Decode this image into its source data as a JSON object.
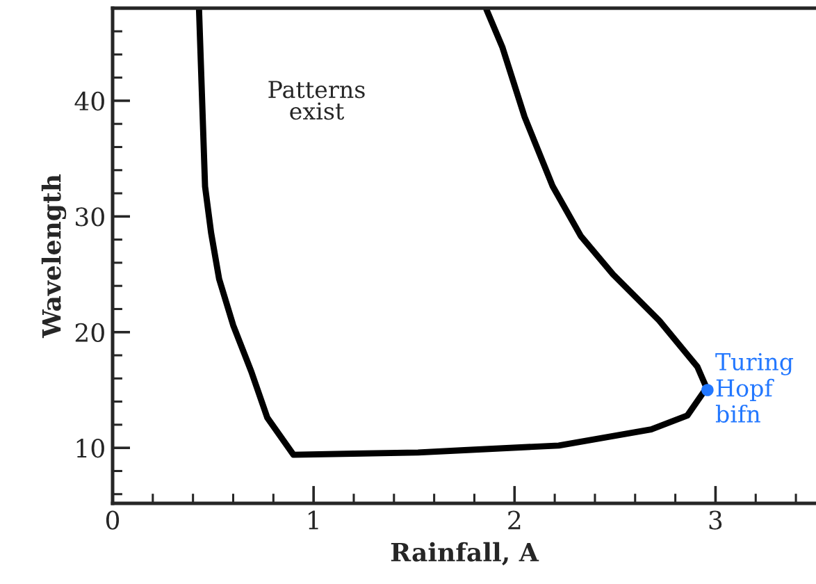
{
  "chart_data": {
    "type": "line",
    "xlabel": "Rainfall, A",
    "ylabel": "Wavelength",
    "xlim": [
      0,
      3.5
    ],
    "ylim": [
      5.2,
      48
    ],
    "xticks": [
      0,
      1,
      2,
      3
    ],
    "yticks": [
      10,
      20,
      30,
      40
    ],
    "annotations": [
      "Patterns\nexist",
      {
        "text": "Turing\nHopf\nbifn",
        "x": 2.96,
        "y": 15.0
      }
    ],
    "series": [
      {
        "color": "#000000",
        "marker": "none",
        "x": [
          0.43,
          0.46,
          0.49,
          0.53,
          0.6,
          0.69,
          0.77,
          0.9,
          1.2,
          1.52,
          1.75,
          2.22,
          2.68,
          2.86,
          2.94,
          2.96,
          2.91,
          2.72,
          2.49,
          2.33,
          2.19,
          2.05,
          1.94,
          1.86
        ],
        "values": [
          47.9,
          32.6,
          28.6,
          24.6,
          20.6,
          16.6,
          12.6,
          9.4,
          9.5,
          9.6,
          9.8,
          10.2,
          11.6,
          12.8,
          14.8,
          15.0,
          17.0,
          21.0,
          25.0,
          28.3,
          32.6,
          38.6,
          44.6,
          47.9
        ]
      },
      {
        "type": "scatter",
        "color": "#2277ff",
        "marker": "circle",
        "x": [
          2.96
        ],
        "values": [
          15.0
        ]
      }
    ]
  }
}
